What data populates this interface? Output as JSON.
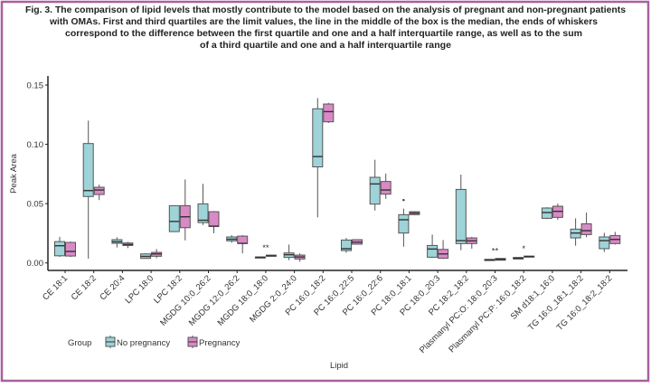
{
  "caption": [
    "Fig. 3. The comparison of lipid levels that mostly contribute to the model based on the analysis of pregnant and non-pregnant patients",
    "with OMAs. First and third quartiles are the limit values, the line in the middle of the box is the median, the ends of whiskers",
    "correspond to the difference between the first quartile and one and a half interquartile range, as well as to the sum",
    "of a third quartile and one and a half interquartile range"
  ],
  "colors": {
    "frame": "#a8609f",
    "no_pregnancy": "#9ed3d8",
    "pregnancy": "#d98ac6",
    "stroke": "#555555"
  },
  "chart_data": {
    "type": "boxplot",
    "xlabel": "Lipid",
    "ylabel": "Peak Area",
    "ylim": [
      0,
      0.16
    ],
    "yticks": [
      "0.00",
      "0.05",
      "0.10",
      "0.15"
    ],
    "grid": false,
    "legend": {
      "title": "Group",
      "placement": "bottom-left",
      "entries": [
        "No pregnancy",
        "Pregnancy"
      ]
    },
    "categories": [
      "CE 18:1",
      "CE 18:2",
      "CE 20:4",
      "LPC 18:0",
      "LPC 18:2",
      "MGDG 10:0_26:2",
      "MGDG 12:0_26:2",
      "MGDG 18:0_18:0",
      "MGDG 2:0_24:0",
      "PC 16:0_18:2",
      "PC 16:0_22:5",
      "PC 16:0_22:6",
      "PC 18:0_18:1",
      "PC 18:0_20:3",
      "PC 18:2_18:2",
      "Plasmanyl PC:O: 18:0_20:3",
      "Plasmanyl PC:P: 16:0_18:2",
      "SM d18:1_16:0",
      "TG 16:0_18:1_18:2",
      "TG 16:0_18:2_18:2"
    ],
    "series": [
      {
        "name": "No pregnancy",
        "boxes": [
          {
            "min": 0.005,
            "q1": 0.006,
            "median": 0.0145,
            "q3": 0.018,
            "max": 0.022
          },
          {
            "min": 0.0036,
            "q1": 0.056,
            "median": 0.061,
            "q3": 0.1007,
            "max": 0.12
          },
          {
            "min": 0.013,
            "q1": 0.0165,
            "median": 0.0178,
            "q3": 0.0196,
            "max": 0.0216
          },
          {
            "min": 0.0035,
            "q1": 0.0038,
            "median": 0.0055,
            "q3": 0.0076,
            "max": 0.008
          },
          {
            "min": 0.026,
            "q1": 0.0264,
            "median": 0.035,
            "q3": 0.0483,
            "max": 0.0483
          },
          {
            "min": 0.032,
            "q1": 0.034,
            "median": 0.036,
            "q3": 0.0498,
            "max": 0.0666
          },
          {
            "min": 0.017,
            "q1": 0.0186,
            "median": 0.02,
            "q3": 0.0219,
            "max": 0.0234
          },
          {
            "min": 0.0045,
            "q1": 0.0045,
            "median": 0.0048,
            "q3": 0.005,
            "max": 0.005
          },
          {
            "min": 0.0023,
            "q1": 0.0046,
            "median": 0.0069,
            "q3": 0.0084,
            "max": 0.0155
          },
          {
            "min": 0.0384,
            "q1": 0.081,
            "median": 0.0897,
            "q3": 0.13,
            "max": 0.139
          },
          {
            "min": 0.0086,
            "q1": 0.0104,
            "median": 0.012,
            "q3": 0.0193,
            "max": 0.021
          },
          {
            "min": 0.0442,
            "q1": 0.0496,
            "median": 0.0666,
            "q3": 0.0722,
            "max": 0.087
          },
          {
            "min": 0.0137,
            "q1": 0.0252,
            "median": 0.0364,
            "q3": 0.0407,
            "max": 0.0458
          },
          {
            "min": 0.0043,
            "q1": 0.0048,
            "median": 0.0117,
            "q3": 0.0147,
            "max": 0.0239
          },
          {
            "min": 0.0107,
            "q1": 0.0163,
            "median": 0.0188,
            "q3": 0.062,
            "max": 0.0745
          },
          {
            "min": 0.002,
            "q1": 0.002,
            "median": 0.0025,
            "q3": 0.003,
            "max": 0.003
          },
          {
            "min": 0.0033,
            "q1": 0.0033,
            "median": 0.004,
            "q3": 0.0046,
            "max": 0.0046
          },
          {
            "min": 0.037,
            "q1": 0.0376,
            "median": 0.0425,
            "q3": 0.0463,
            "max": 0.047
          },
          {
            "min": 0.0145,
            "q1": 0.0211,
            "median": 0.0252,
            "q3": 0.0285,
            "max": 0.0376
          },
          {
            "min": 0.0092,
            "q1": 0.012,
            "median": 0.0188,
            "q3": 0.0219,
            "max": 0.0254
          }
        ]
      },
      {
        "name": "Pregnancy",
        "boxes": [
          {
            "min": 0.005,
            "q1": 0.0058,
            "median": 0.0097,
            "q3": 0.0173,
            "max": 0.018
          },
          {
            "min": 0.053,
            "q1": 0.0577,
            "median": 0.0615,
            "q3": 0.0638,
            "max": 0.066
          },
          {
            "min": 0.0125,
            "q1": 0.0147,
            "median": 0.0155,
            "q3": 0.0168,
            "max": 0.0178
          },
          {
            "min": 0.004,
            "q1": 0.0056,
            "median": 0.0076,
            "q3": 0.0089,
            "max": 0.0117
          },
          {
            "min": 0.019,
            "q1": 0.0297,
            "median": 0.0389,
            "q3": 0.0483,
            "max": 0.0704
          },
          {
            "min": 0.025,
            "q1": 0.0308,
            "median": 0.031,
            "q3": 0.0432,
            "max": 0.0437
          },
          {
            "min": 0.008,
            "q1": 0.0165,
            "median": 0.0165,
            "q3": 0.0226,
            "max": 0.0234
          },
          {
            "min": 0.0056,
            "q1": 0.0056,
            "median": 0.006,
            "q3": 0.0066,
            "max": 0.0066
          },
          {
            "min": 0.001,
            "q1": 0.0033,
            "median": 0.005,
            "q3": 0.0066,
            "max": 0.008
          },
          {
            "min": 0.118,
            "q1": 0.119,
            "median": 0.1276,
            "q3": 0.134,
            "max": 0.135
          },
          {
            "min": 0.0158,
            "q1": 0.0158,
            "median": 0.0175,
            "q3": 0.0196,
            "max": 0.0196
          },
          {
            "min": 0.054,
            "q1": 0.058,
            "median": 0.0615,
            "q3": 0.0687,
            "max": 0.0753
          },
          {
            "min": 0.0403,
            "q1": 0.0407,
            "median": 0.042,
            "q3": 0.0432,
            "max": 0.0437
          },
          {
            "min": 0.0033,
            "q1": 0.004,
            "median": 0.0076,
            "q3": 0.0114,
            "max": 0.0193
          },
          {
            "min": 0.012,
            "q1": 0.0163,
            "median": 0.0186,
            "q3": 0.0211,
            "max": 0.022
          },
          {
            "min": 0.0023,
            "q1": 0.0023,
            "median": 0.003,
            "q3": 0.0038,
            "max": 0.0038
          },
          {
            "min": 0.005,
            "q1": 0.005,
            "median": 0.0053,
            "q3": 0.0058,
            "max": 0.0058
          },
          {
            "min": 0.0364,
            "q1": 0.0384,
            "median": 0.0435,
            "q3": 0.0478,
            "max": 0.05
          },
          {
            "min": 0.0216,
            "q1": 0.0239,
            "median": 0.0272,
            "q3": 0.033,
            "max": 0.0425
          },
          {
            "min": 0.0155,
            "q1": 0.0163,
            "median": 0.0198,
            "q3": 0.0231,
            "max": 0.0262
          }
        ]
      }
    ],
    "outliers": [
      {
        "category": "PC 18:0_18:1",
        "series": "No pregnancy",
        "value": 0.053
      }
    ],
    "annotations": [
      {
        "category": "MGDG 18:0_18:0",
        "text": "**"
      },
      {
        "category": "Plasmanyl PC:O: 18:0_20:3",
        "text": "**"
      },
      {
        "category": "Plasmanyl PC:P: 16:0_18:2",
        "text": "*"
      }
    ]
  }
}
